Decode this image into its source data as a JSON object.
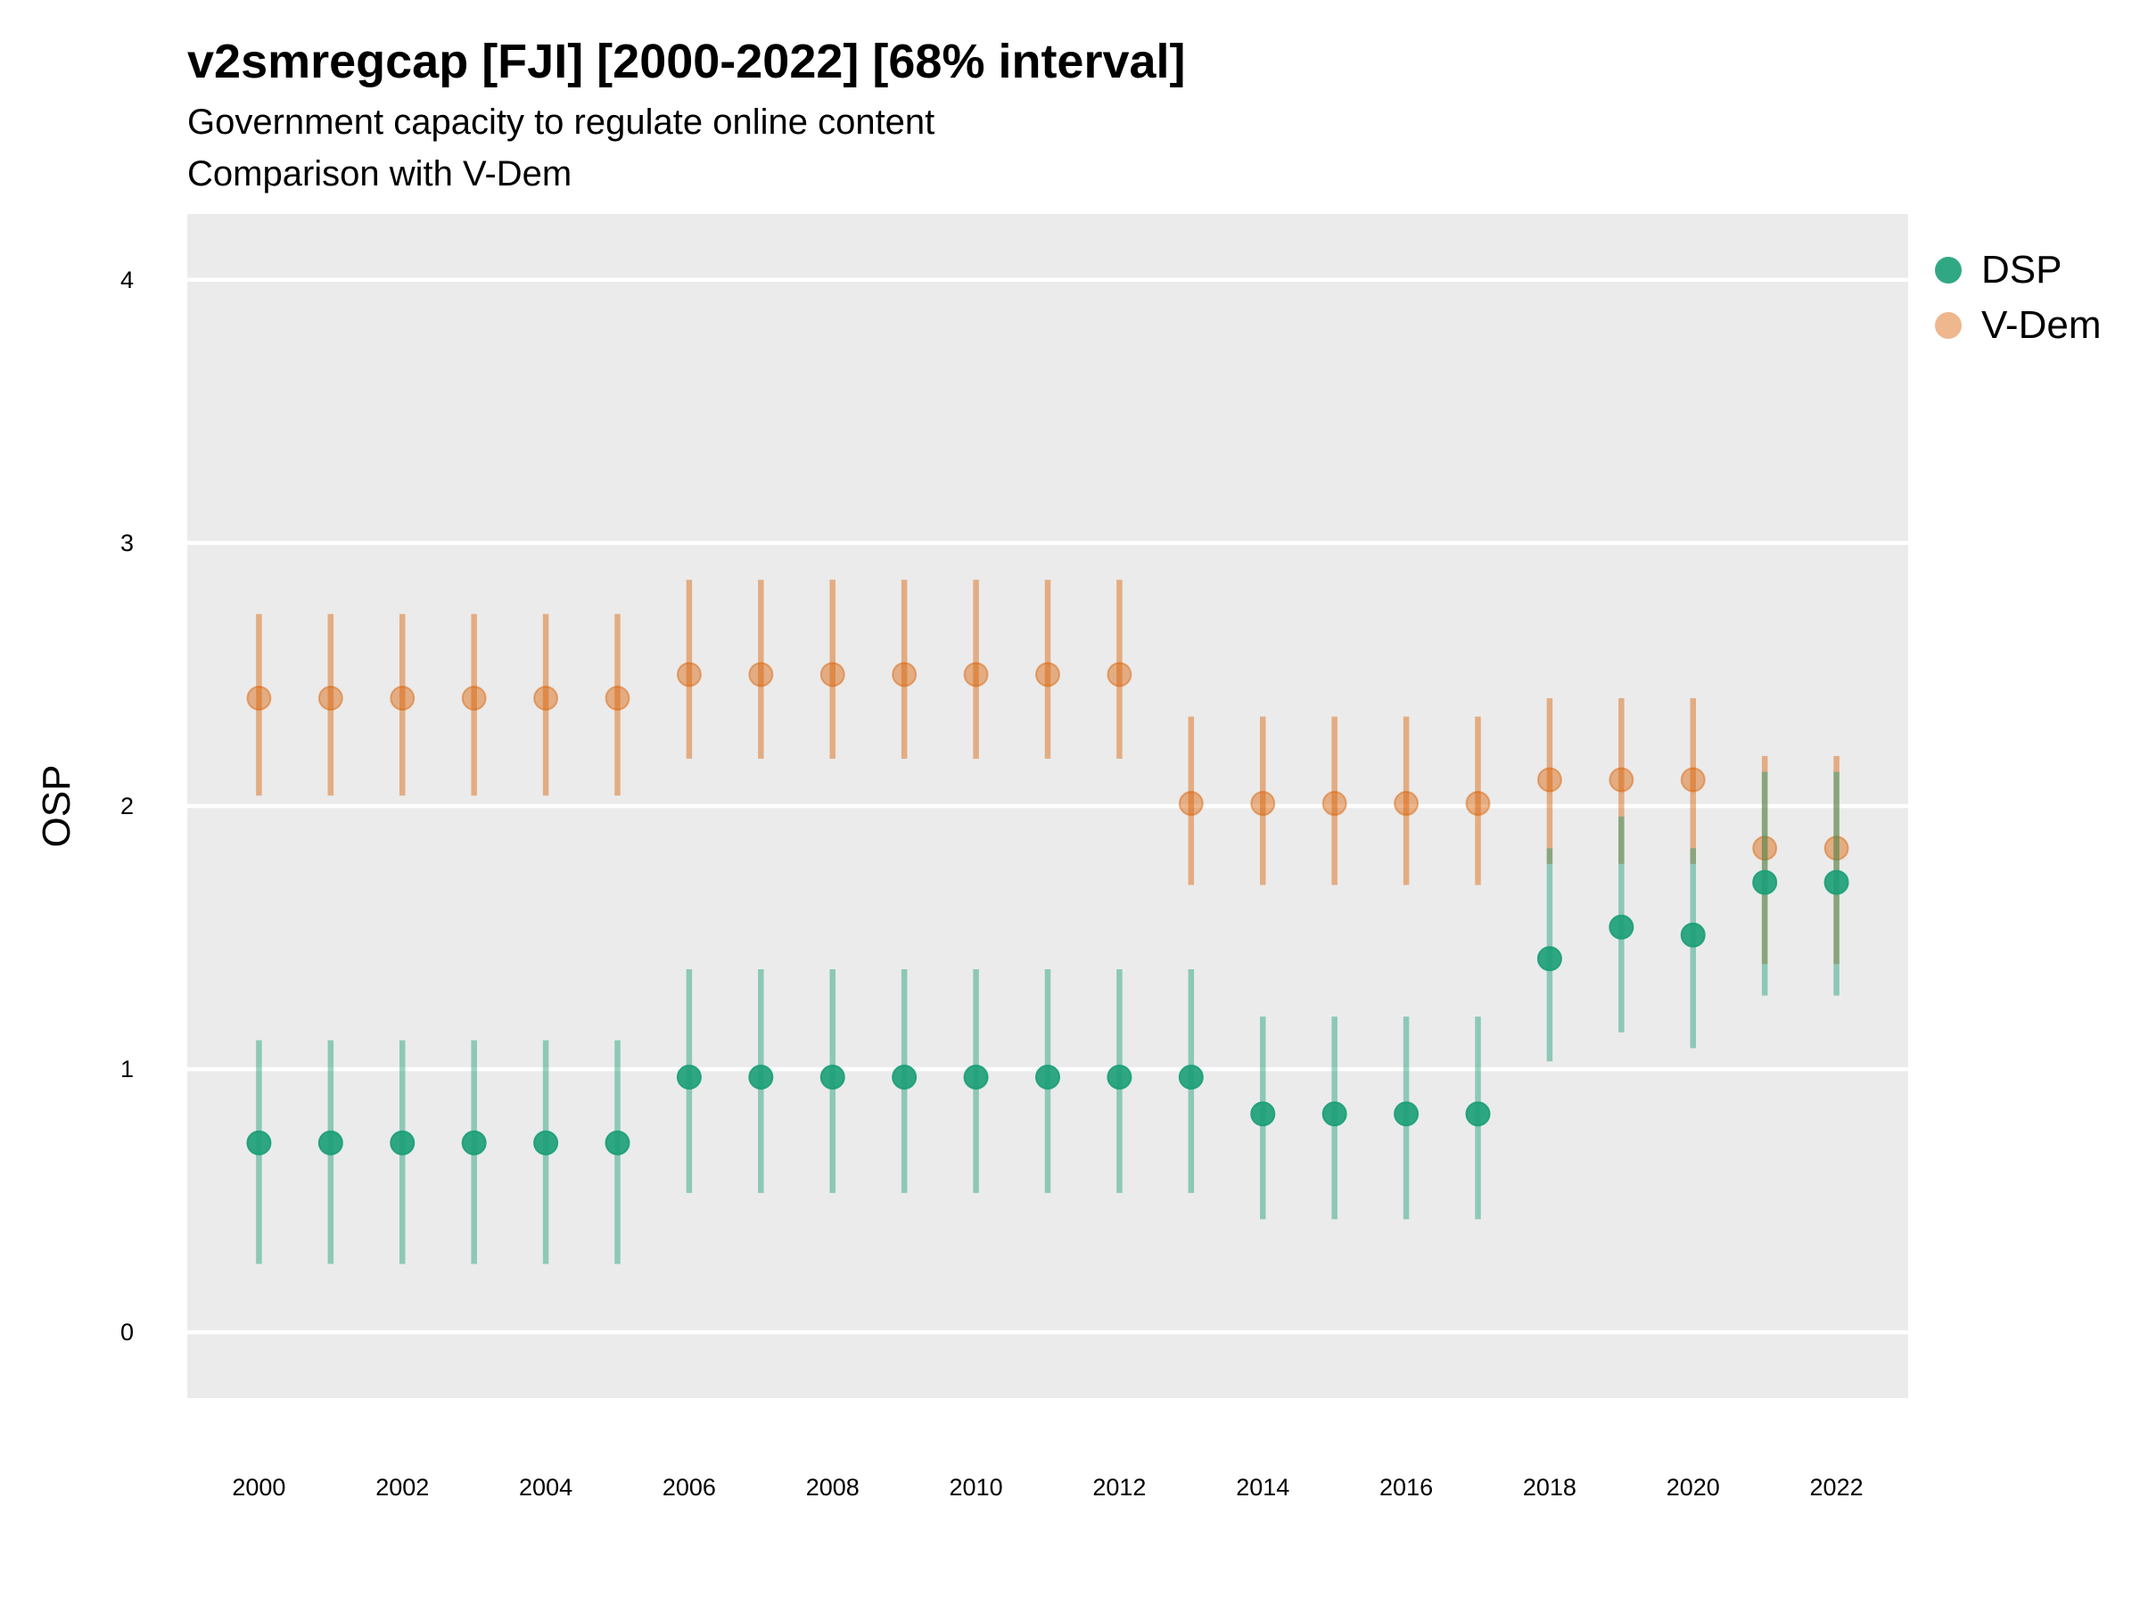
{
  "chart_data": {
    "type": "scatter",
    "title": "v2smregcap [FJI] [2000-2022] [68% interval]",
    "subtitle_lines": [
      "Government capacity to regulate online content",
      "Comparison with V-Dem"
    ],
    "xlabel": "",
    "ylabel": "OSP",
    "xlim": [
      1999.0,
      2023.0
    ],
    "ylim": [
      -0.25,
      4.25
    ],
    "x_ticks": [
      2000,
      2002,
      2004,
      2006,
      2008,
      2010,
      2012,
      2014,
      2016,
      2018,
      2020,
      2022
    ],
    "y_ticks": [
      0,
      1,
      2,
      3,
      4
    ],
    "grid": true,
    "legend_position": "right",
    "x": [
      2000,
      2001,
      2002,
      2003,
      2004,
      2005,
      2006,
      2007,
      2008,
      2009,
      2010,
      2011,
      2012,
      2013,
      2014,
      2015,
      2016,
      2017,
      2018,
      2019,
      2020,
      2021,
      2022
    ],
    "series": [
      {
        "name": "DSP",
        "color": "#1b9e77",
        "values": [
          0.72,
          0.72,
          0.72,
          0.72,
          0.72,
          0.72,
          0.97,
          0.97,
          0.97,
          0.97,
          0.97,
          0.97,
          0.97,
          0.97,
          0.83,
          0.83,
          0.83,
          0.83,
          1.42,
          1.54,
          1.51,
          1.71,
          1.71
        ],
        "lower": [
          0.26,
          0.26,
          0.26,
          0.26,
          0.26,
          0.26,
          0.53,
          0.53,
          0.53,
          0.53,
          0.53,
          0.53,
          0.53,
          0.53,
          0.43,
          0.43,
          0.43,
          0.43,
          1.03,
          1.14,
          1.08,
          1.28,
          1.28
        ],
        "upper": [
          1.11,
          1.11,
          1.11,
          1.11,
          1.11,
          1.11,
          1.38,
          1.38,
          1.38,
          1.38,
          1.38,
          1.38,
          1.38,
          1.38,
          1.2,
          1.2,
          1.2,
          1.2,
          1.84,
          1.96,
          1.84,
          2.13,
          2.13
        ]
      },
      {
        "name": "V-Dem",
        "color": "#d95f02",
        "values": [
          2.41,
          2.41,
          2.41,
          2.41,
          2.41,
          2.41,
          2.5,
          2.5,
          2.5,
          2.5,
          2.5,
          2.5,
          2.5,
          2.01,
          2.01,
          2.01,
          2.01,
          2.01,
          2.1,
          2.1,
          2.1,
          1.84,
          1.84
        ],
        "lower": [
          2.04,
          2.04,
          2.04,
          2.04,
          2.04,
          2.04,
          2.18,
          2.18,
          2.18,
          2.18,
          2.18,
          2.18,
          2.18,
          1.7,
          1.7,
          1.7,
          1.7,
          1.7,
          1.78,
          1.78,
          1.78,
          1.4,
          1.4
        ],
        "upper": [
          2.73,
          2.73,
          2.73,
          2.73,
          2.73,
          2.73,
          2.86,
          2.86,
          2.86,
          2.86,
          2.86,
          2.86,
          2.86,
          2.34,
          2.34,
          2.34,
          2.34,
          2.34,
          2.41,
          2.41,
          2.41,
          2.19,
          2.19
        ]
      }
    ]
  }
}
